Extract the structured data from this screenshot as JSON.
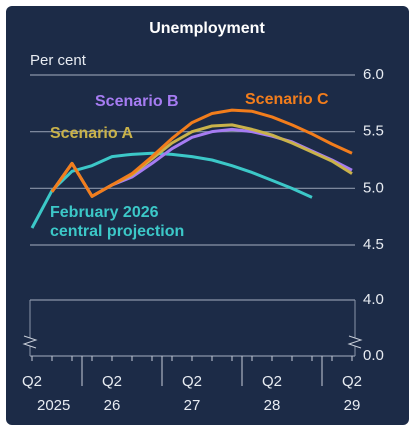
{
  "chart_data": {
    "type": "line",
    "title": "Unemployment",
    "y_axis_label": "Per cent",
    "categories": [
      "Q2",
      null,
      null,
      null,
      "Q2",
      null,
      null,
      null,
      "Q2",
      null,
      null,
      null,
      "Q2",
      null,
      null,
      null,
      "Q2"
    ],
    "year_labels": [
      "2025",
      "26",
      "27",
      "28",
      "29"
    ],
    "series": [
      {
        "name": "February 2026 central projection",
        "color": "#3cc8c8",
        "values": [
          4.65,
          4.98,
          5.15,
          5.2,
          5.28,
          5.3,
          5.31,
          5.3,
          5.28,
          5.25,
          5.2,
          5.14,
          5.07,
          5.0,
          4.92,
          null,
          null
        ]
      },
      {
        "name": "Scenario A",
        "color": "#c9b24a",
        "values": [
          null,
          4.97,
          5.22,
          4.93,
          5.03,
          5.12,
          5.26,
          5.4,
          5.5,
          5.55,
          5.56,
          5.52,
          5.47,
          5.4,
          5.32,
          5.24,
          5.13
        ]
      },
      {
        "name": "Scenario B",
        "color": "#a67cf2",
        "values": [
          null,
          4.97,
          5.22,
          4.93,
          5.03,
          5.1,
          5.22,
          5.35,
          5.45,
          5.5,
          5.52,
          5.5,
          5.46,
          5.41,
          5.33,
          5.25,
          5.16
        ]
      },
      {
        "name": "Scenario C",
        "color": "#f27d1c",
        "values": [
          null,
          4.97,
          5.22,
          4.93,
          5.03,
          5.13,
          5.28,
          5.44,
          5.58,
          5.66,
          5.69,
          5.68,
          5.63,
          5.56,
          5.48,
          5.39,
          5.31
        ]
      }
    ],
    "ylim": [
      4.5,
      6.0
    ],
    "yticks": [
      {
        "value": 4.5,
        "label": "4.5"
      },
      {
        "value": 5,
        "label": "5.0"
      },
      {
        "value": 5.5,
        "label": "5.5"
      },
      {
        "value": 6,
        "label": "6.0"
      }
    ],
    "lower_ylim": [
      0,
      4
    ],
    "lower_yticks": [
      {
        "value": 0,
        "label": "0.0"
      },
      {
        "value": 4,
        "label": "4.0"
      }
    ],
    "grid": true
  }
}
